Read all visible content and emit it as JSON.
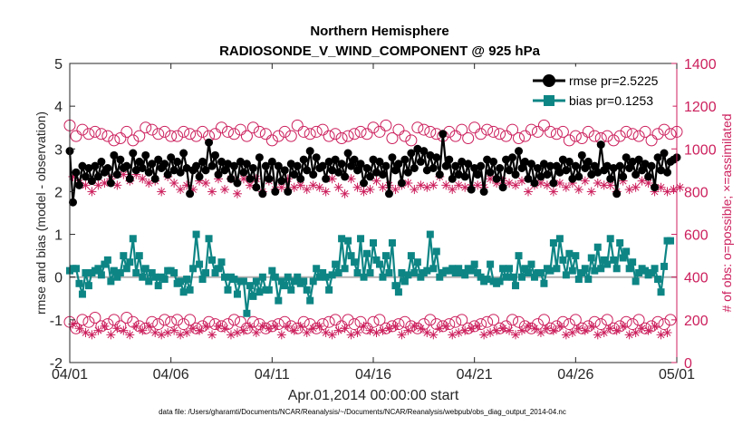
{
  "chart_data": {
    "type": "line",
    "title": "Northern Hemisphere",
    "subtitle": "RADIOSONDE_V_WIND_COMPONENT @ 925 hPa",
    "xlabel": "Apr.01,2014 00:00:00 start",
    "ylabel": "rmse and bias (model - observation)",
    "ylabel_right": "# of obs: o=possible; ×=assimilated",
    "footnote": "data file: /Users/gharamti/Documents/NCAR/Reanalysis/~/Documents/NCAR/Reanalysis/webpub/obs_diag_output_2014-04.nc",
    "xlim": [
      0,
      30
    ],
    "ylim": [
      -2,
      5
    ],
    "ylim_right": [
      0,
      1400
    ],
    "x_ticks": [
      0,
      5,
      10,
      15,
      20,
      25,
      30
    ],
    "x_tick_labels": [
      "04/01",
      "04/06",
      "04/11",
      "04/16",
      "04/21",
      "04/26",
      "05/01"
    ],
    "y_ticks": [
      -2,
      -1,
      0,
      1,
      2,
      3,
      4,
      5
    ],
    "y_tick_labels": [
      "-2",
      "-1",
      "0",
      "1",
      "2",
      "3",
      "4",
      "5"
    ],
    "y_right_ticks": [
      0,
      200,
      400,
      600,
      800,
      1000,
      1200,
      1400
    ],
    "y_right_tick_labels": [
      "0",
      "200",
      "400",
      "600",
      "800",
      "1000",
      "1200",
      "1400"
    ],
    "legend": {
      "position": "top-right",
      "entries": [
        "rmse pr=2.5225",
        "bias pr=0.1253"
      ]
    },
    "colors": {
      "rmse": "#000000",
      "bias": "#0e8585",
      "obs": "#cc1f5c",
      "zero_line": "#b3b3b3"
    },
    "rmse": [
      2.95,
      1.75,
      2.45,
      2.15,
      2.6,
      2.35,
      2.55,
      2.25,
      2.6,
      2.35,
      2.7,
      2.45,
      2.55,
      2.2,
      2.85,
      2.4,
      2.75,
      2.55,
      2.6,
      2.3,
      2.9,
      2.5,
      2.7,
      2.55,
      2.85,
      2.45,
      2.65,
      2.3,
      2.75,
      2.55,
      2.65,
      2.4,
      2.8,
      2.5,
      2.7,
      2.45,
      2.9,
      2.55,
      1.95,
      2.5,
      2.6,
      2.35,
      2.7,
      2.5,
      3.15,
      2.6,
      2.85,
      2.4,
      2.7,
      2.5,
      2.65,
      2.3,
      2.6,
      2.2,
      2.7,
      2.45,
      2.65,
      2.3,
      2.55,
      2.1,
      2.8,
      1.95,
      2.6,
      2.3,
      2.7,
      2.0,
      2.6,
      2.25,
      2.5,
      2.0,
      2.65,
      2.4,
      2.6,
      2.3,
      2.75,
      2.5,
      2.95,
      2.4,
      2.8,
      2.55,
      2.6,
      2.3,
      2.7,
      2.5,
      2.75,
      2.45,
      2.65,
      2.35,
      2.9,
      2.6,
      2.75,
      2.5,
      2.65,
      2.2,
      2.55,
      2.35,
      2.75,
      2.45,
      2.7,
      2.4,
      2.6,
      1.95,
      2.8,
      2.5,
      2.65,
      2.2,
      2.75,
      2.45,
      2.9,
      2.55,
      3.0,
      2.7,
      2.95,
      2.5,
      2.85,
      2.55,
      2.8,
      2.4,
      3.35,
      2.6,
      2.75,
      2.3,
      2.6,
      2.4,
      2.7,
      2.35,
      2.65,
      2.05,
      2.55,
      2.4,
      2.6,
      2.0,
      2.75,
      2.45,
      2.7,
      2.3,
      2.55,
      2.1,
      2.75,
      2.5,
      2.8,
      2.4,
      2.95,
      2.55,
      2.7,
      2.3,
      2.65,
      2.2,
      2.55,
      2.35,
      2.65,
      2.4,
      2.6,
      2.2,
      2.6,
      2.45,
      2.75,
      2.5,
      2.7,
      2.3,
      2.6,
      2.35,
      2.85,
      2.55,
      2.7,
      2.4,
      2.6,
      2.45,
      3.1,
      2.5,
      2.6,
      2.3,
      2.55,
      1.95,
      2.6,
      2.35,
      2.8,
      2.55,
      2.7,
      2.4,
      2.75,
      2.5,
      2.65,
      2.35,
      2.6,
      2.1,
      2.8,
      2.5,
      2.9,
      2.45,
      2.7,
      2.75,
      2.8
    ],
    "bias": [
      0.15,
      0.2,
      0.2,
      -0.15,
      -0.4,
      0.1,
      -0.2,
      0.1,
      0.15,
      0.2,
      0.05,
      0.3,
      0.4,
      -0.1,
      0.15,
      0.0,
      0.1,
      0.5,
      0.2,
      0.35,
      0.9,
      0.1,
      0.5,
      0.0,
      0.2,
      -0.1,
      0.1,
      0.0,
      -0.2,
      0.0,
      -0.05,
      0.15,
      0.15,
      0.1,
      -0.15,
      -0.1,
      -0.35,
      -0.05,
      -0.3,
      0.2,
      1.0,
      0.3,
      -0.05,
      0.1,
      0.9,
      0.4,
      0.1,
      0.2,
      0.35,
      0.0,
      -0.3,
      0.0,
      -0.05,
      -0.4,
      -0.1,
      -0.1,
      -0.85,
      -0.2,
      -0.45,
      -0.1,
      -0.35,
      0.0,
      -0.3,
      -0.3,
      0.15,
      0.0,
      -0.55,
      -0.1,
      -0.2,
      0.0,
      -0.3,
      -0.1,
      0.0,
      -0.15,
      -0.1,
      -0.3,
      -0.55,
      -0.1,
      0.2,
      0.0,
      0.1,
      0.0,
      -0.3,
      0.05,
      0.3,
      0.1,
      0.9,
      0.2,
      0.85,
      0.5,
      0.35,
      0.1,
      0.9,
      0.0,
      0.55,
      0.1,
      0.8,
      0.4,
      0.3,
      0.0,
      0.5,
      0.1,
      0.8,
      -0.2,
      -0.35,
      0.1,
      -0.1,
      0.05,
      0.5,
      0.1,
      0.35,
      0.0,
      0.1,
      0.15,
      1.0,
      0.2,
      0.6,
      0.0,
      0.1,
      0.15,
      0.15,
      0.2,
      0.1,
      0.2,
      0.1,
      0.05,
      0.2,
      0.15,
      0.3,
      0.1,
      0.0,
      -0.1,
      -0.05,
      0.3,
      -0.1,
      -0.15,
      -0.1,
      0.2,
      0.0,
      0.2,
      0.0,
      -0.2,
      0.5,
      0.0,
      0.2,
      0.1,
      0.3,
      0.0,
      0.1,
      0.1,
      -0.15,
      0.2,
      0.15,
      0.8,
      0.2,
      0.9,
      0.4,
      0.05,
      0.55,
      0.15,
      0.5,
      -0.05,
      0.1,
      0.2,
      -0.05,
      0.45,
      0.15,
      0.7,
      0.2,
      0.4,
      0.3,
      0.9,
      0.4,
      0.2,
      0.8,
      0.45,
      0.6,
      0.2,
      0.35,
      -0.1,
      0.1,
      0.2,
      0.15,
      0.05,
      0.1,
      0.2,
      -0.05,
      -0.35,
      0.25,
      0.85,
      0.85
    ],
    "obs_possible": [
      1110,
      1030,
      1060,
      1080,
      1090,
      1060,
      1070,
      1040,
      1080,
      1050,
      1070,
      1050,
      1060,
      1090,
      1040,
      1080,
      1050,
      1060,
      1080,
      1100,
      1040,
      1070,
      1060,
      1070,
      1100,
      1060,
      1090,
      1040,
      1070,
      1060,
      1080,
      1050,
      1060,
      1090,
      1060,
      1050,
      1080,
      1090,
      1070,
      1040,
      1060,
      1050,
      1080,
      1100,
      1060,
      1040,
      1070,
      1090,
      1100,
      1050,
      1080,
      1060,
      1070,
      1050,
      1090,
      1070,
      1060,
      1040,
      1100,
      1060,
      1080,
      1050,
      1070,
      1090,
      1040,
      1080,
      1060,
      1050,
      1080,
      1090,
      1060,
      1070,
      1110,
      1050,
      1080,
      1060,
      1070,
      1050,
      1080,
      1060,
      1090,
      1040,
      1060,
      1080,
      1070,
      1060,
      1050,
      1090,
      1060,
      1040,
      1070,
      1060,
      1080,
      1050,
      1070,
      1060,
      1100,
      1050,
      1080,
      1060,
      1110,
      1070,
      1050,
      1080,
      1090,
      1070,
      1060,
      1080,
      1040,
      1070,
      1100,
      1060,
      1090,
      1050,
      1080,
      1060,
      1070,
      1100,
      1060,
      1050,
      1080,
      1040,
      1060,
      1070,
      1090,
      1060,
      1050,
      1080,
      1100,
      1040,
      1070,
      1060,
      1090,
      1040,
      1080,
      1060,
      1070,
      1050,
      1060,
      1040,
      1090,
      1070,
      1050,
      1080,
      1060,
      1070,
      1090,
      1040,
      1080,
      1060,
      1110,
      1050,
      1080,
      1060,
      1070,
      1050,
      1080,
      1100,
      1040,
      1070,
      1060,
      1090,
      1050,
      1040,
      1080,
      1070,
      1060,
      1100,
      1050,
      1080,
      1060,
      1070,
      1040,
      1090,
      1060,
      1050,
      1080,
      1040,
      1070,
      1100,
      1060,
      1050,
      1080,
      1060,
      1040,
      1090,
      1070,
      1060,
      1090,
      1050,
      1070,
      1060,
      1080,
      1100
    ],
    "obs_assimilated": [
      850,
      870,
      810,
      840,
      790,
      830,
      840,
      800,
      850,
      830,
      820,
      840,
      820,
      860,
      850,
      830,
      810,
      880,
      820,
      850,
      830,
      880,
      820,
      860,
      800,
      840,
      810,
      850,
      820,
      800,
      820,
      870,
      800,
      840,
      820,
      810,
      780,
      830,
      770,
      810,
      830,
      850,
      760,
      840,
      820,
      800,
      830,
      860,
      840,
      810,
      800,
      860,
      830,
      790,
      810,
      860,
      850,
      830,
      820,
      860,
      840,
      800,
      820,
      850,
      830,
      810,
      790,
      820,
      830,
      860,
      840,
      820,
      800,
      830,
      840,
      810,
      790,
      830,
      840,
      820,
      850,
      800,
      830,
      860,
      840,
      820,
      830,
      790,
      800,
      860,
      840,
      820,
      850,
      800,
      830,
      810,
      830,
      850,
      840,
      820,
      790,
      830,
      860,
      810,
      850,
      830,
      820,
      840,
      830,
      810,
      860,
      830,
      840,
      820,
      800,
      830,
      840,
      870,
      820,
      830,
      850,
      810,
      840,
      830,
      800,
      820,
      850,
      820,
      840,
      830,
      810,
      820,
      800,
      860,
      830,
      840,
      820,
      850,
      810,
      840,
      820,
      830,
      810,
      850,
      820,
      800,
      840,
      830,
      820,
      840,
      850,
      830,
      810,
      800,
      830,
      840,
      850,
      820,
      800,
      840,
      820,
      810,
      830,
      850,
      830,
      800,
      820,
      840,
      860,
      830,
      850,
      830,
      820,
      800,
      840,
      850,
      830,
      810,
      840,
      820,
      830,
      850,
      810,
      840,
      830,
      800,
      830,
      820,
      840,
      800,
      850,
      810,
      830,
      820,
      810
    ],
    "obs_possible_low": [
      190,
      210,
      160,
      180,
      200,
      170,
      190,
      160,
      210,
      180,
      170,
      200,
      180,
      160,
      200,
      190,
      170,
      180,
      210,
      160,
      190,
      200,
      170,
      180,
      160,
      200,
      190,
      170,
      180,
      160,
      200,
      170,
      190,
      180,
      200,
      160,
      180,
      170,
      200,
      190,
      160,
      180,
      170,
      200,
      190,
      160,
      180,
      200,
      170,
      190,
      180,
      160,
      200,
      170,
      190,
      180,
      160,
      200,
      190,
      170,
      180,
      200,
      160,
      190,
      170,
      200,
      180,
      160,
      190,
      200,
      170,
      180,
      160,
      200,
      190,
      170,
      180,
      190,
      160,
      200,
      180,
      170,
      190,
      160,
      200,
      180,
      170,
      190,
      200,
      160,
      180,
      170,
      190,
      200,
      160,
      180,
      190,
      170,
      200,
      180,
      160,
      190,
      170,
      200,
      180,
      160,
      190,
      180,
      170,
      200,
      160,
      190,
      180,
      170,
      200,
      160,
      180,
      190,
      170,
      200,
      180,
      160,
      190,
      170,
      200,
      180,
      160,
      190,
      170,
      200,
      180,
      160,
      190,
      170,
      200,
      180,
      160,
      190,
      170,
      180,
      200,
      160,
      190,
      180,
      170,
      200,
      160,
      190,
      180,
      170,
      200,
      190,
      160,
      180,
      170,
      200,
      190,
      160,
      180,
      170,
      200,
      190,
      160,
      180,
      170,
      200,
      190,
      160,
      180,
      170,
      200,
      190,
      160,
      180,
      170,
      200,
      190,
      160,
      180,
      170,
      200,
      190,
      160,
      180,
      170,
      200,
      190,
      160,
      180,
      170,
      200
    ],
    "obs_assimilated_low": [
      150,
      180,
      130,
      160,
      170,
      140,
      160,
      130,
      180,
      150,
      140,
      170,
      150,
      130,
      170,
      160,
      140,
      150,
      180,
      130,
      160,
      170,
      140,
      150,
      130,
      170,
      160,
      140,
      150,
      130,
      170,
      140,
      160,
      150,
      170,
      130,
      150,
      140,
      170,
      160,
      130,
      150,
      140,
      170,
      160,
      130,
      150,
      170,
      140,
      160,
      150,
      130,
      170,
      140,
      160,
      150,
      130,
      170,
      160,
      140,
      150,
      170,
      130,
      160,
      140,
      170,
      150,
      130,
      160,
      170,
      140,
      150,
      130,
      170,
      160,
      140,
      150,
      160,
      130,
      170,
      150,
      140,
      160,
      130,
      170,
      150,
      140,
      160,
      170,
      130,
      150,
      140,
      160,
      170,
      130,
      150,
      160,
      140,
      170,
      150,
      130,
      160,
      140,
      170,
      150,
      130,
      160,
      150,
      140,
      170,
      130,
      160,
      150,
      140,
      170,
      130,
      150,
      160,
      140,
      170,
      150,
      130,
      160,
      140,
      170,
      150,
      130,
      160,
      140,
      170,
      150,
      130,
      160,
      140,
      170,
      150,
      130,
      160,
      140,
      150,
      170,
      130,
      160,
      150,
      140,
      170,
      130,
      160,
      150,
      140,
      170,
      160,
      130,
      150,
      140,
      170,
      160,
      130,
      150,
      140,
      170,
      160,
      130,
      150,
      140,
      170,
      160,
      130,
      150,
      140,
      170,
      160,
      130,
      150,
      140,
      170,
      160,
      130,
      150,
      140,
      170,
      160,
      130,
      150,
      140,
      170,
      160,
      130,
      150,
      140,
      170
    ]
  }
}
